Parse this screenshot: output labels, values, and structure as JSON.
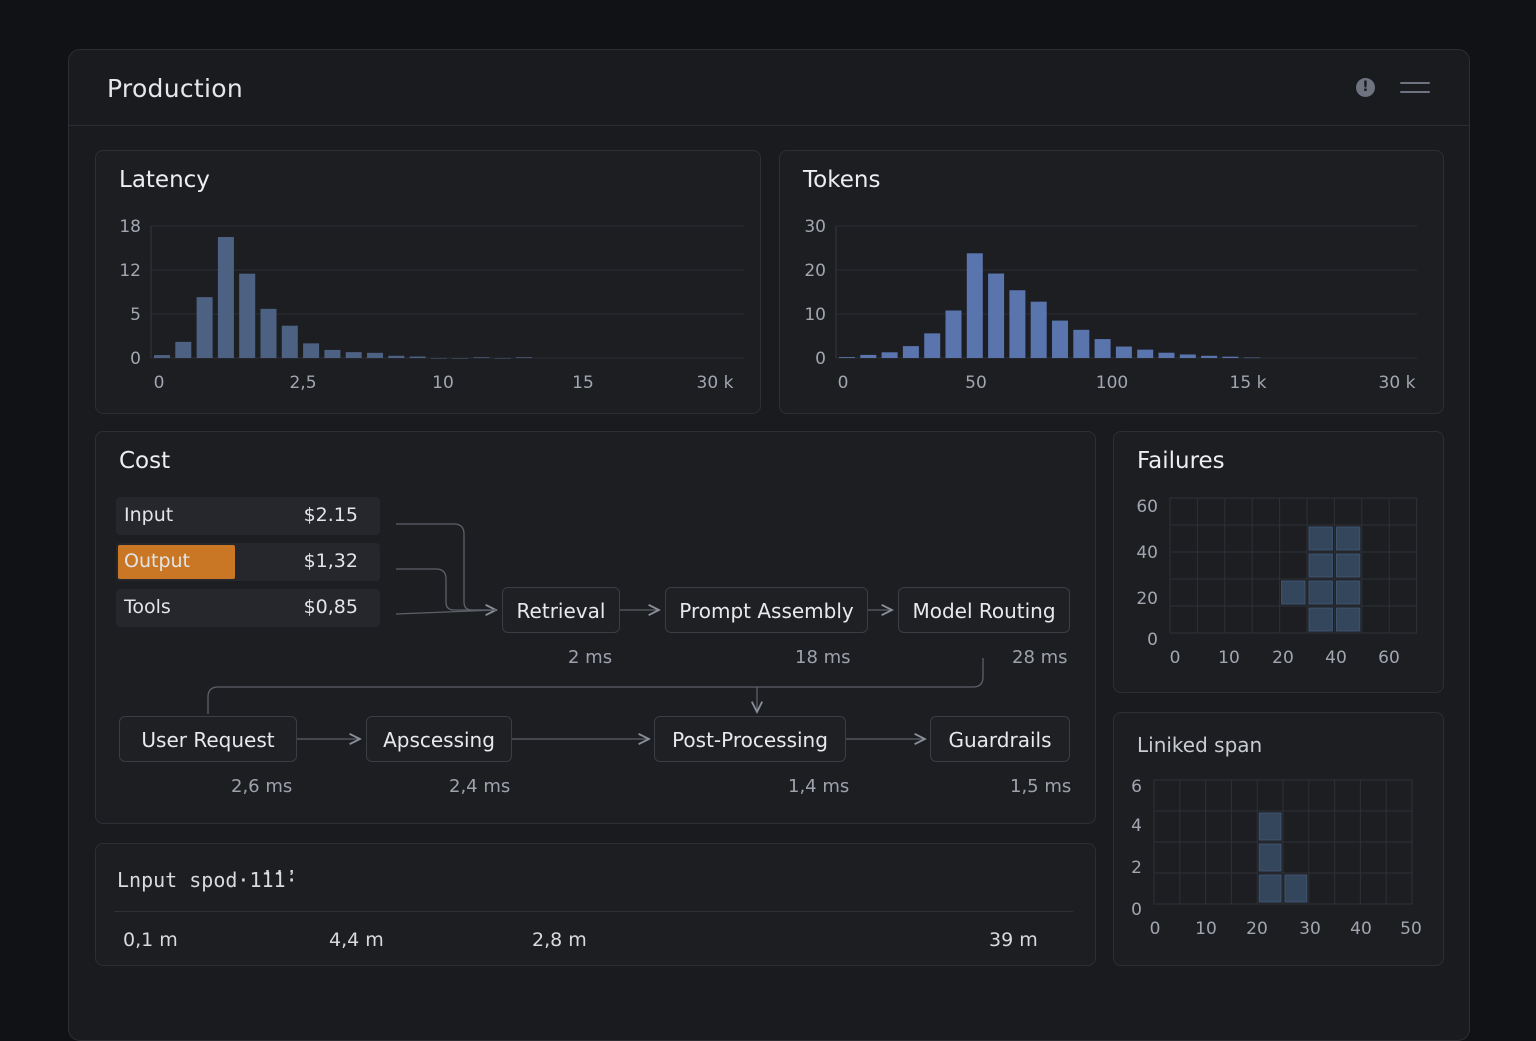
{
  "app": {
    "title": "Production",
    "icons": [
      "alert-icon",
      "menu-icon"
    ]
  },
  "colors": {
    "background": "#111215",
    "panel": "#1d1e22",
    "bar": "#4f6485",
    "bar_bright": "#5b76b0",
    "output_highlight": "#c97725",
    "grid_cell": "#34475c"
  },
  "latency": {
    "title": "Latency",
    "chart_data": {
      "type": "bar",
      "title": "Latency",
      "y_ticks": [
        "18",
        "12",
        "5",
        "0"
      ],
      "x_ticks": [
        "0",
        "2,5",
        "10",
        "15",
        "30 k"
      ],
      "ylim": [
        0,
        18
      ],
      "values": [
        0.4,
        2.2,
        8.3,
        16.5,
        11.5,
        6.7,
        4.4,
        2.0,
        1.1,
        0.8,
        0.7,
        0.3,
        0.2,
        0,
        0,
        0.1,
        0,
        0.1
      ],
      "grid": true
    }
  },
  "tokens": {
    "title": "Tokens",
    "chart_data": {
      "type": "bar",
      "title": "Tokens",
      "y_ticks": [
        "30",
        "20",
        "10",
        "0"
      ],
      "x_ticks": [
        "0",
        "50",
        "100",
        "15 k",
        "30 k"
      ],
      "ylim": [
        0,
        30
      ],
      "values": [
        0.2,
        0.7,
        1.3,
        2.7,
        5.6,
        10.8,
        23.8,
        19.2,
        15.4,
        12.8,
        8.5,
        6.4,
        4.3,
        2.6,
        1.9,
        1.2,
        0.8,
        0.5,
        0.3,
        0.1
      ],
      "grid": true
    }
  },
  "cost": {
    "title": "Cost",
    "items": [
      {
        "label": "Input",
        "value": "$2.15",
        "share": 0
      },
      {
        "label": "Output",
        "value": "$1,32",
        "share": 0.45
      },
      {
        "label": "Tools",
        "value": "$0,85",
        "share": 0
      }
    ],
    "pipeline_top": [
      {
        "label": "Retrieval",
        "ms": "2 ms"
      },
      {
        "label": "Prompt Assembly",
        "ms": "18 ms"
      },
      {
        "label": "Model Routing",
        "ms": "28 ms"
      }
    ],
    "pipeline_bottom": [
      {
        "label": "User Request",
        "ms": "2,6 ms"
      },
      {
        "label": "Apscessing",
        "ms": "2,4 ms"
      },
      {
        "label": "Post-Processing",
        "ms": "1,4 ms"
      },
      {
        "label": "Guardrails",
        "ms": "1,5 ms"
      }
    ]
  },
  "failures": {
    "title": "Failures",
    "chart_data": {
      "type": "heatmap",
      "title": "Failures",
      "y_ticks": [
        "60",
        "40",
        "20",
        "0"
      ],
      "x_ticks": [
        "0",
        "10",
        "20",
        "40",
        "60"
      ],
      "rows": 5,
      "cols": 9,
      "cells": [
        [
          1,
          5
        ],
        [
          1,
          6
        ],
        [
          2,
          5
        ],
        [
          2,
          6
        ],
        [
          3,
          4
        ],
        [
          3,
          5
        ],
        [
          3,
          6
        ],
        [
          4,
          5
        ],
        [
          4,
          6
        ]
      ],
      "grid": true
    }
  },
  "linked": {
    "title": "Liniked span",
    "chart_data": {
      "type": "heatmap",
      "title": "Liniked span",
      "y_ticks": [
        "6",
        "4",
        "2",
        "0"
      ],
      "x_ticks": [
        "0",
        "10",
        "20",
        "30",
        "40",
        "50"
      ],
      "rows": 4,
      "cols": 10,
      "cells": [
        [
          1,
          4
        ],
        [
          2,
          4
        ],
        [
          3,
          4
        ],
        [
          3,
          5
        ]
      ],
      "grid": true
    }
  },
  "input_speed": {
    "title": "Lnput spod·1̓1̓1̓·",
    "values": [
      "0,1 m",
      "4,4 m",
      "2,8 m",
      "39 m"
    ]
  }
}
